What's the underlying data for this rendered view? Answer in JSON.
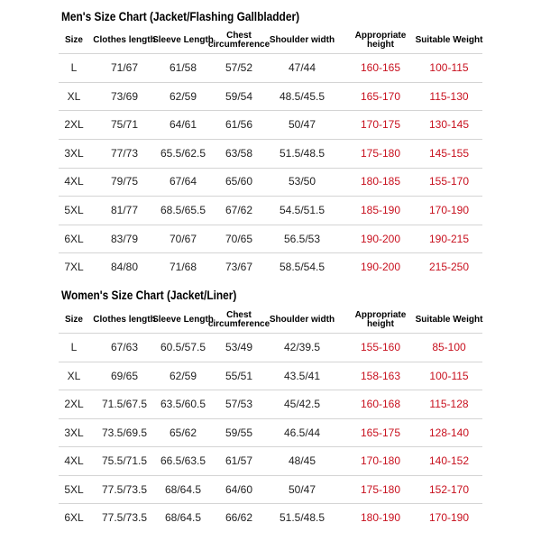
{
  "tables": [
    {
      "title": "Men's Size Chart (Jacket/Flashing Gallbladder)",
      "headers": [
        "Size",
        "Clothes length",
        "Sleeve Length",
        "Chest circumference",
        "Shoulder width",
        "Appropriate height",
        "Suitable Weight"
      ],
      "rows": [
        [
          "L",
          "71/67",
          "61/58",
          "57/52",
          "47/44",
          "160-165",
          "100-115"
        ],
        [
          "XL",
          "73/69",
          "62/59",
          "59/54",
          "48.5/45.5",
          "165-170",
          "115-130"
        ],
        [
          "2XL",
          "75/71",
          "64/61",
          "61/56",
          "50/47",
          "170-175",
          "130-145"
        ],
        [
          "3XL",
          "77/73",
          "65.5/62.5",
          "63/58",
          "51.5/48.5",
          "175-180",
          "145-155"
        ],
        [
          "4XL",
          "79/75",
          "67/64",
          "65/60",
          "53/50",
          "180-185",
          "155-170"
        ],
        [
          "5XL",
          "81/77",
          "68.5/65.5",
          "67/62",
          "54.5/51.5",
          "185-190",
          "170-190"
        ],
        [
          "6XL",
          "83/79",
          "70/67",
          "70/65",
          "56.5/53",
          "190-200",
          "190-215"
        ],
        [
          "7XL",
          "84/80",
          "71/68",
          "73/67",
          "58.5/54.5",
          "190-200",
          "215-250"
        ]
      ]
    },
    {
      "title": "Women's Size Chart (Jacket/Liner)",
      "headers": [
        "Size",
        "Clothes length",
        "Sleeve Length",
        "Chest circumference",
        "Shoulder width",
        "Appropriate height",
        "Suitable Weight"
      ],
      "rows": [
        [
          "L",
          "67/63",
          "60.5/57.5",
          "53/49",
          "42/39.5",
          "155-160",
          "85-100"
        ],
        [
          "XL",
          "69/65",
          "62/59",
          "55/51",
          "43.5/41",
          "158-163",
          "100-115"
        ],
        [
          "2XL",
          "71.5/67.5",
          "63.5/60.5",
          "57/53",
          "45/42.5",
          "160-168",
          "115-128"
        ],
        [
          "3XL",
          "73.5/69.5",
          "65/62",
          "59/55",
          "46.5/44",
          "165-175",
          "128-140"
        ],
        [
          "4XL",
          "75.5/71.5",
          "66.5/63.5",
          "61/57",
          "48/45",
          "170-180",
          "140-152"
        ],
        [
          "5XL",
          "77.5/73.5",
          "68/64.5",
          "64/60",
          "50/47",
          "175-180",
          "152-170"
        ],
        [
          "6XL",
          "77.5/73.5",
          "68/64.5",
          "66/62",
          "51.5/48.5",
          "180-190",
          "170-190"
        ]
      ]
    }
  ]
}
